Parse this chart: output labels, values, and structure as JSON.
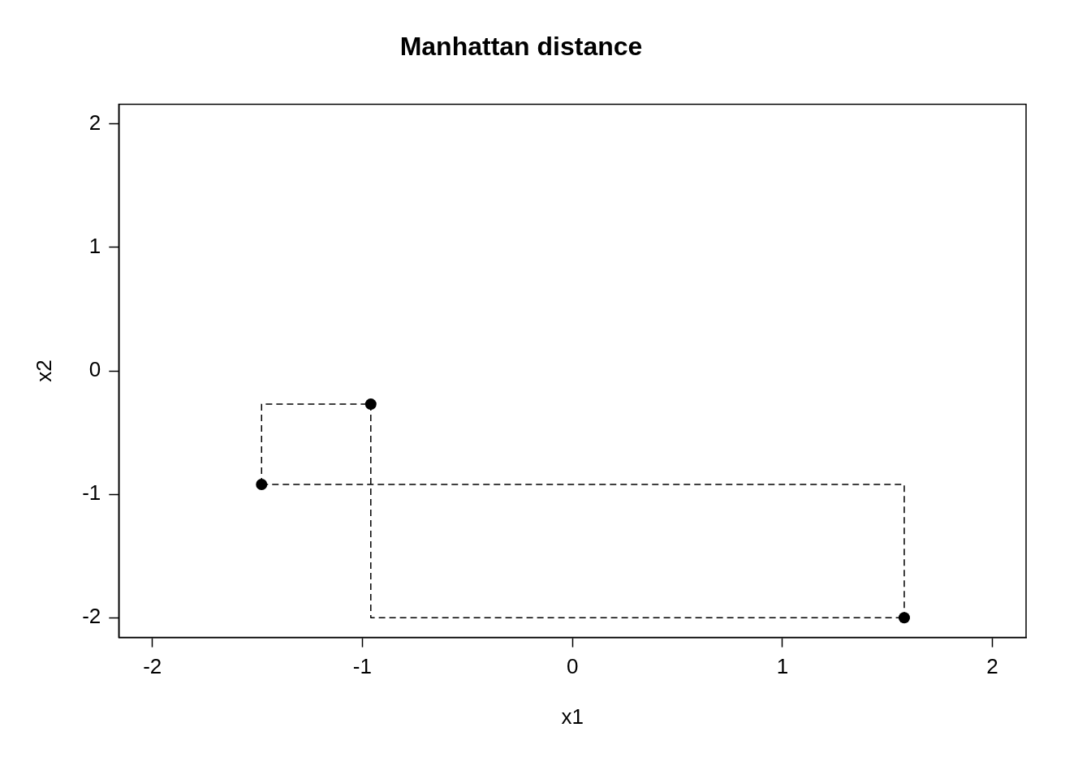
{
  "chart_data": {
    "type": "scatter",
    "title": "Manhattan distance",
    "xlabel": "x1",
    "ylabel": "x2",
    "xlim": [
      -2.16,
      2.16
    ],
    "ylim": [
      -2.16,
      2.16
    ],
    "xticks": [
      -2,
      -1,
      0,
      1,
      2
    ],
    "yticks": [
      -2,
      -1,
      0,
      1,
      2
    ],
    "grid": false,
    "legend": false,
    "series": [
      {
        "type": "line",
        "color": "#000000",
        "x": [
          -1.48,
          -1.48,
          -0.96
        ],
        "values": [
          -0.92,
          -0.27,
          -0.27
        ],
        "marker": "none",
        "line_style": "dashed"
      },
      {
        "type": "line",
        "color": "#000000",
        "x": [
          -0.96,
          -0.96,
          1.58
        ],
        "values": [
          -0.27,
          -2.0,
          -2.0
        ],
        "marker": "none",
        "line_style": "dashed"
      },
      {
        "type": "line",
        "color": "#000000",
        "x": [
          -1.48,
          1.58,
          1.58
        ],
        "values": [
          -0.92,
          -0.92,
          -2.0
        ],
        "marker": "none",
        "line_style": "dashed"
      },
      {
        "color": "#000000",
        "x": [
          -1.48,
          -0.96,
          1.58
        ],
        "values": [
          -0.92,
          -0.27,
          -2.0
        ],
        "marker": "circle"
      }
    ]
  }
}
